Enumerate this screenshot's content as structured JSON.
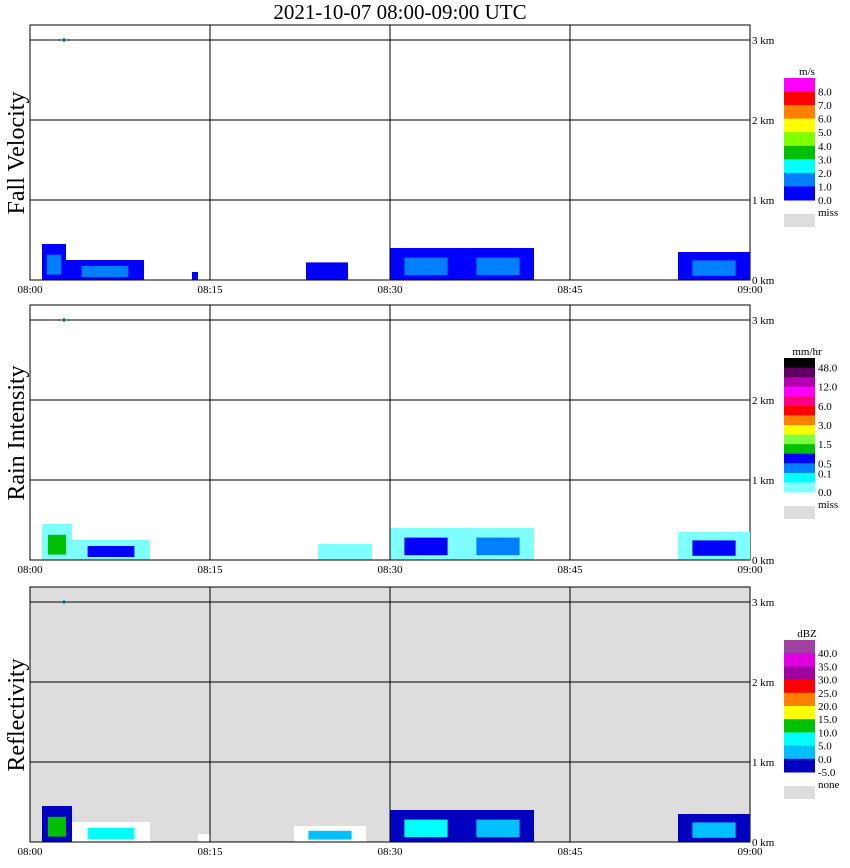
{
  "title": "2021-10-07   08:00-09:00 UTC",
  "chart_data": [
    {
      "type": "heatmap",
      "ylabel": "Fall Velocity",
      "xlabel": "",
      "xticks": [
        "08:00",
        "08:15",
        "08:30",
        "08:45",
        "09:00"
      ],
      "yticks": [
        "0 km",
        "1 km",
        "2 km",
        "3 km"
      ],
      "xlim_minutes": [
        0,
        60
      ],
      "ylim_km": [
        0,
        3.2
      ],
      "background": "#ffffff",
      "legend": {
        "unit": "m/s",
        "labels": [
          "8.0",
          "7.0",
          "6.0",
          "5.0",
          "4.0",
          "3.0",
          "2.0",
          "1.0",
          "0.0"
        ],
        "colors": [
          "#ff00ff",
          "#ff0000",
          "#ff8000",
          "#ffff00",
          "#80ff00",
          "#00c000",
          "#00ffff",
          "#0080ff",
          "#0000ff"
        ],
        "miss_label": "miss",
        "miss_color": "#dddddd"
      },
      "echoes": [
        {
          "t0": 1,
          "t1": 3,
          "top": 0.45,
          "color": "#0000ff",
          "core": "#0080ff"
        },
        {
          "t0": 3,
          "t1": 9.5,
          "top": 0.25,
          "color": "#0000ff",
          "core": "#0080ff"
        },
        {
          "t0": 13.5,
          "t1": 14,
          "top": 0.1,
          "color": "#0000ff"
        },
        {
          "t0": 23,
          "t1": 26.5,
          "top": 0.22,
          "color": "#0000ff"
        },
        {
          "t0": 30,
          "t1": 36,
          "top": 0.4,
          "color": "#0000ff",
          "core": "#0080ff"
        },
        {
          "t0": 36,
          "t1": 42,
          "top": 0.4,
          "color": "#0000ff",
          "core": "#0080ff"
        },
        {
          "t0": 54,
          "t1": 60,
          "top": 0.35,
          "color": "#0000ff",
          "core": "#0080ff"
        }
      ]
    },
    {
      "type": "heatmap",
      "ylabel": "Rain Intensity",
      "xticks": [
        "08:00",
        "08:15",
        "08:30",
        "08:45",
        "09:00"
      ],
      "yticks": [
        "0 km",
        "1 km",
        "2 km",
        "3 km"
      ],
      "xlim_minutes": [
        0,
        60
      ],
      "ylim_km": [
        0,
        3.2
      ],
      "background": "#ffffff",
      "legend": {
        "unit": "mm/hr",
        "labels": [
          "48.0",
          "12.0",
          "6.0",
          "3.0",
          "1.5",
          "0.5",
          "0.1",
          "0.0"
        ],
        "colors": [
          "#000000",
          "#600060",
          "#b000b0",
          "#ff00ff",
          "#ff0080",
          "#ff0000",
          "#ff8000",
          "#ffff00",
          "#80ff40",
          "#00c000",
          "#0000ff",
          "#0080ff",
          "#00ffff",
          "#80ffff"
        ],
        "miss_label": "miss",
        "miss_color": "#dddddd"
      },
      "echoes": [
        {
          "t0": 1,
          "t1": 3.5,
          "top": 0.45,
          "color": "#80ffff",
          "core": "#00c000"
        },
        {
          "t0": 3.5,
          "t1": 10,
          "top": 0.25,
          "color": "#80ffff",
          "core": "#0000ff"
        },
        {
          "t0": 24,
          "t1": 28.5,
          "top": 0.2,
          "color": "#80ffff"
        },
        {
          "t0": 30,
          "t1": 36,
          "top": 0.4,
          "color": "#80ffff",
          "core": "#0000ff"
        },
        {
          "t0": 36,
          "t1": 42,
          "top": 0.4,
          "color": "#80ffff",
          "core": "#0080ff"
        },
        {
          "t0": 54,
          "t1": 60,
          "top": 0.35,
          "color": "#80ffff",
          "core": "#0000ff"
        }
      ]
    },
    {
      "type": "heatmap",
      "ylabel": "Reflectivity",
      "xticks": [
        "08:00",
        "08:15",
        "08:30",
        "08:45",
        "09:00"
      ],
      "yticks": [
        "0 km",
        "1 km",
        "2 km",
        "3 km"
      ],
      "xlim_minutes": [
        0,
        60
      ],
      "ylim_km": [
        0,
        3.2
      ],
      "background": "#dddddd",
      "legend": {
        "unit": "dBZ",
        "labels": [
          "40.0",
          "35.0",
          "30.0",
          "25.0",
          "20.0",
          "15.0",
          "10.0",
          "5.0",
          "0.0",
          "-5.0"
        ],
        "colors": [
          "#a040a0",
          "#e000e0",
          "#a000a0",
          "#ff0000",
          "#ff8000",
          "#ffff00",
          "#00c000",
          "#00ffff",
          "#00c0ff",
          "#0000c0"
        ],
        "miss_label": "none",
        "miss_color": "#dddddd"
      },
      "echoes": [
        {
          "t0": 1,
          "t1": 3.5,
          "top": 0.45,
          "color": "#0000c0",
          "core": "#00c000"
        },
        {
          "t0": 3.5,
          "t1": 10,
          "top": 0.25,
          "color": "#ffffff",
          "core": "#00ffff"
        },
        {
          "t0": 14,
          "t1": 15,
          "top": 0.1,
          "color": "#ffffff"
        },
        {
          "t0": 22,
          "t1": 28,
          "top": 0.2,
          "color": "#ffffff",
          "core": "#00c0ff"
        },
        {
          "t0": 30,
          "t1": 36,
          "top": 0.4,
          "color": "#0000c0",
          "core": "#00ffff"
        },
        {
          "t0": 36,
          "t1": 42,
          "top": 0.4,
          "color": "#0000c0",
          "core": "#00c0ff"
        },
        {
          "t0": 54,
          "t1": 60,
          "top": 0.35,
          "color": "#0000c0",
          "core": "#00c0ff"
        }
      ]
    }
  ]
}
